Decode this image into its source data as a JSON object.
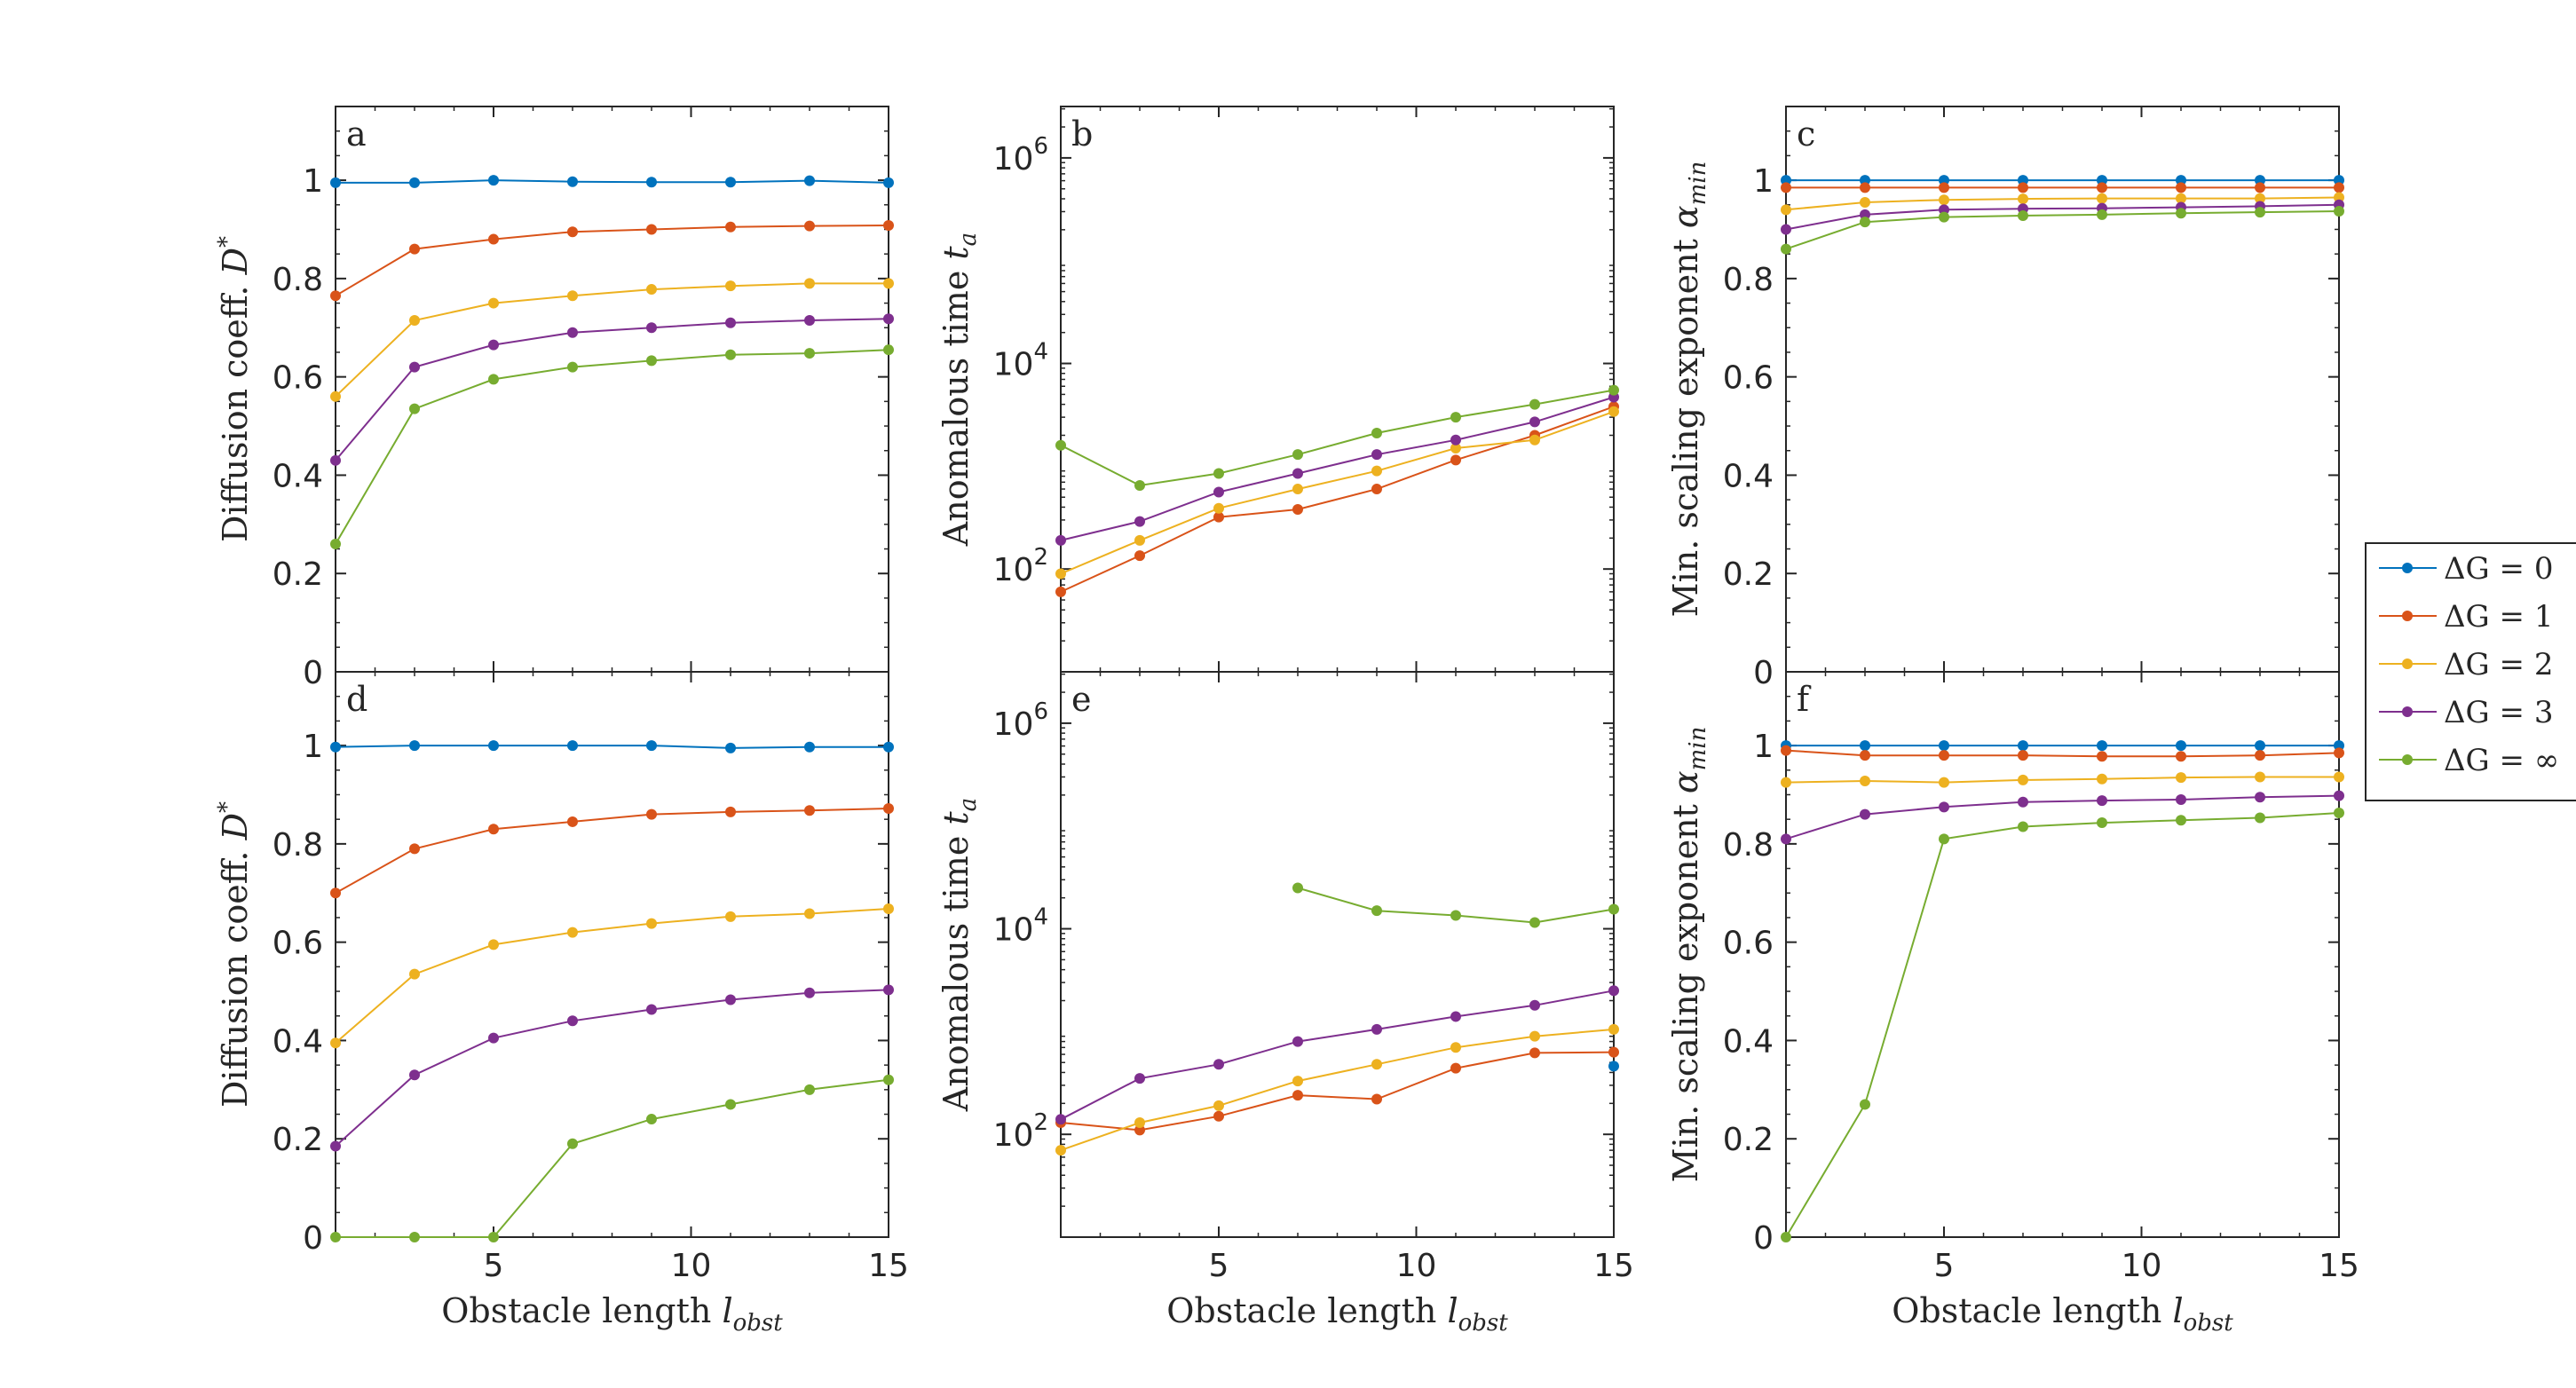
{
  "xlabel_main": "Obstacle length",
  "xlabel_sym": "l",
  "xlabel_sub": "obst",
  "legend": [
    {
      "label": "ΔG = 0",
      "color": "#0072BD"
    },
    {
      "label": "ΔG = 1",
      "color": "#D95319"
    },
    {
      "label": "ΔG = 2",
      "color": "#EDB120"
    },
    {
      "label": "ΔG = 3",
      "color": "#7E2F8E"
    },
    {
      "label": "ΔG = ∞",
      "color": "#77AC30"
    }
  ],
  "chart_data": [
    {
      "panel": "a",
      "type": "line",
      "scale": "linear",
      "ylabel": "Diffusion coeff. D*",
      "xlim": [
        1,
        15
      ],
      "ylim": [
        0,
        1.15
      ],
      "xticks": [
        5,
        10,
        15
      ],
      "yticks": [
        0,
        0.2,
        0.4,
        0.6,
        0.8,
        1
      ],
      "ytick_labels": [
        "0",
        "0.2",
        "0.4",
        "0.6",
        "0.8",
        "1"
      ],
      "x": [
        1,
        3,
        5,
        7,
        9,
        11,
        13,
        15
      ],
      "series": [
        {
          "name": "ΔG = 0",
          "values": [
            0.995,
            0.995,
            1.0,
            0.997,
            0.996,
            0.996,
            0.999,
            0.995
          ]
        },
        {
          "name": "ΔG = 1",
          "values": [
            0.765,
            0.86,
            0.88,
            0.895,
            0.9,
            0.905,
            0.907,
            0.908
          ]
        },
        {
          "name": "ΔG = 2",
          "values": [
            0.56,
            0.715,
            0.75,
            0.765,
            0.778,
            0.785,
            0.79,
            0.79
          ]
        },
        {
          "name": "ΔG = 3",
          "values": [
            0.43,
            0.62,
            0.665,
            0.69,
            0.7,
            0.71,
            0.715,
            0.718
          ]
        },
        {
          "name": "ΔG = ∞",
          "values": [
            0.26,
            0.535,
            0.595,
            0.62,
            0.633,
            0.645,
            0.648,
            0.655
          ]
        }
      ]
    },
    {
      "panel": "b",
      "type": "line",
      "scale": "log",
      "ylabel": "Anomalous time t_a",
      "xlim": [
        1,
        15
      ],
      "ylim_log10": [
        1,
        6.5
      ],
      "xticks": [
        5,
        10,
        15
      ],
      "yticks_log10": [
        2,
        4,
        6
      ],
      "ytick_labels": [
        "10",
        "10",
        "10"
      ],
      "ytick_exponents": [
        "2",
        "4",
        "6"
      ],
      "x": [
        1,
        3,
        5,
        7,
        9,
        11,
        13,
        15
      ],
      "series": [
        {
          "name": "ΔG = 0",
          "values": [
            null,
            null,
            null,
            null,
            null,
            null,
            null,
            null
          ]
        },
        {
          "name": "ΔG = 1",
          "values": [
            60,
            135,
            320,
            380,
            600,
            1150,
            2000,
            3800
          ]
        },
        {
          "name": "ΔG = 2",
          "values": [
            90,
            190,
            390,
            600,
            900,
            1500,
            1800,
            3400
          ]
        },
        {
          "name": "ΔG = 3",
          "values": [
            190,
            290,
            560,
            850,
            1300,
            1800,
            2700,
            4700
          ]
        },
        {
          "name": "ΔG = ∞",
          "values": [
            1600,
            650,
            850,
            1300,
            2100,
            3000,
            4000,
            5500
          ]
        }
      ]
    },
    {
      "panel": "c",
      "type": "line",
      "scale": "linear",
      "ylabel": "Min. scaling exponent α_min",
      "xlim": [
        1,
        15
      ],
      "ylim": [
        0,
        1.15
      ],
      "xticks": [
        5,
        10,
        15
      ],
      "yticks": [
        0,
        0.2,
        0.4,
        0.6,
        0.8,
        1
      ],
      "ytick_labels": [
        "0",
        "0.2",
        "0.4",
        "0.6",
        "0.8",
        "1"
      ],
      "x": [
        1,
        3,
        5,
        7,
        9,
        11,
        13,
        15
      ],
      "series": [
        {
          "name": "ΔG = 0",
          "values": [
            1.0,
            1.0,
            1.0,
            1.0,
            1.0,
            1.0,
            1.0,
            1.0
          ]
        },
        {
          "name": "ΔG = 1",
          "values": [
            0.985,
            0.985,
            0.985,
            0.985,
            0.985,
            0.985,
            0.985,
            0.985
          ]
        },
        {
          "name": "ΔG = 2",
          "values": [
            0.94,
            0.955,
            0.96,
            0.962,
            0.963,
            0.963,
            0.963,
            0.965
          ]
        },
        {
          "name": "ΔG = 3",
          "values": [
            0.9,
            0.93,
            0.94,
            0.942,
            0.943,
            0.945,
            0.947,
            0.95
          ]
        },
        {
          "name": "ΔG = ∞",
          "values": [
            0.86,
            0.915,
            0.925,
            0.928,
            0.93,
            0.933,
            0.935,
            0.937
          ]
        }
      ]
    },
    {
      "panel": "d",
      "type": "line",
      "scale": "linear",
      "ylabel": "Diffusion coeff. D*",
      "xlim": [
        1,
        15
      ],
      "ylim": [
        0,
        1.15
      ],
      "xticks": [
        5,
        10,
        15
      ],
      "yticks": [
        0,
        0.2,
        0.4,
        0.6,
        0.8,
        1
      ],
      "ytick_labels": [
        "0",
        "0.2",
        "0.4",
        "0.6",
        "0.8",
        "1"
      ],
      "x": [
        1,
        3,
        5,
        7,
        9,
        11,
        13,
        15
      ],
      "series": [
        {
          "name": "ΔG = 0",
          "values": [
            0.997,
            1.0,
            1.0,
            1.0,
            1.0,
            0.995,
            0.997,
            0.997
          ]
        },
        {
          "name": "ΔG = 1",
          "values": [
            0.7,
            0.79,
            0.83,
            0.845,
            0.86,
            0.865,
            0.868,
            0.872
          ]
        },
        {
          "name": "ΔG = 2",
          "values": [
            0.395,
            0.535,
            0.595,
            0.62,
            0.638,
            0.652,
            0.658,
            0.668
          ]
        },
        {
          "name": "ΔG = 3",
          "values": [
            0.185,
            0.33,
            0.405,
            0.44,
            0.463,
            0.483,
            0.497,
            0.503
          ]
        },
        {
          "name": "ΔG = ∞",
          "values": [
            0.0,
            0.0,
            0.0,
            0.19,
            0.24,
            0.27,
            0.3,
            0.32
          ]
        }
      ]
    },
    {
      "panel": "e",
      "type": "line",
      "scale": "log",
      "ylabel": "Anomalous time t_a",
      "xlim": [
        1,
        15
      ],
      "ylim_log10": [
        1,
        6.5
      ],
      "xticks": [
        5,
        10,
        15
      ],
      "yticks_log10": [
        2,
        4,
        6
      ],
      "ytick_labels": [
        "10",
        "10",
        "10"
      ],
      "ytick_exponents": [
        "2",
        "4",
        "6"
      ],
      "x": [
        1,
        3,
        5,
        7,
        9,
        11,
        13,
        15
      ],
      "series": [
        {
          "name": "ΔG = 0",
          "values": [
            null,
            null,
            null,
            null,
            null,
            null,
            null,
            460
          ]
        },
        {
          "name": "ΔG = 1",
          "values": [
            130,
            110,
            150,
            240,
            220,
            440,
            620,
            630
          ]
        },
        {
          "name": "ΔG = 2",
          "values": [
            70,
            130,
            190,
            330,
            480,
            700,
            900,
            1050
          ]
        },
        {
          "name": "ΔG = 3",
          "values": [
            140,
            350,
            480,
            800,
            1050,
            1400,
            1800,
            2500
          ]
        },
        {
          "name": "ΔG = ∞",
          "values": [
            null,
            null,
            null,
            25000,
            15000,
            13500,
            11500,
            15500
          ]
        }
      ]
    },
    {
      "panel": "f",
      "type": "line",
      "scale": "linear",
      "ylabel": "Min. scaling exponent α_min",
      "xlim": [
        1,
        15
      ],
      "ylim": [
        0,
        1.15
      ],
      "xticks": [
        5,
        10,
        15
      ],
      "yticks": [
        0,
        0.2,
        0.4,
        0.6,
        0.8,
        1
      ],
      "ytick_labels": [
        "0",
        "0.2",
        "0.4",
        "0.6",
        "0.8",
        "1"
      ],
      "x": [
        1,
        3,
        5,
        7,
        9,
        11,
        13,
        15
      ],
      "series": [
        {
          "name": "ΔG = 0",
          "values": [
            1.0,
            1.0,
            1.0,
            1.0,
            1.0,
            1.0,
            1.0,
            1.0
          ]
        },
        {
          "name": "ΔG = 1",
          "values": [
            0.99,
            0.98,
            0.98,
            0.98,
            0.978,
            0.978,
            0.98,
            0.985
          ]
        },
        {
          "name": "ΔG = 2",
          "values": [
            0.925,
            0.928,
            0.925,
            0.93,
            0.932,
            0.935,
            0.936,
            0.936
          ]
        },
        {
          "name": "ΔG = 3",
          "values": [
            0.81,
            0.86,
            0.875,
            0.885,
            0.888,
            0.89,
            0.895,
            0.898
          ]
        },
        {
          "name": "ΔG = ∞",
          "values": [
            0.0,
            0.27,
            0.81,
            0.835,
            0.843,
            0.848,
            0.853,
            0.863
          ]
        }
      ]
    }
  ]
}
